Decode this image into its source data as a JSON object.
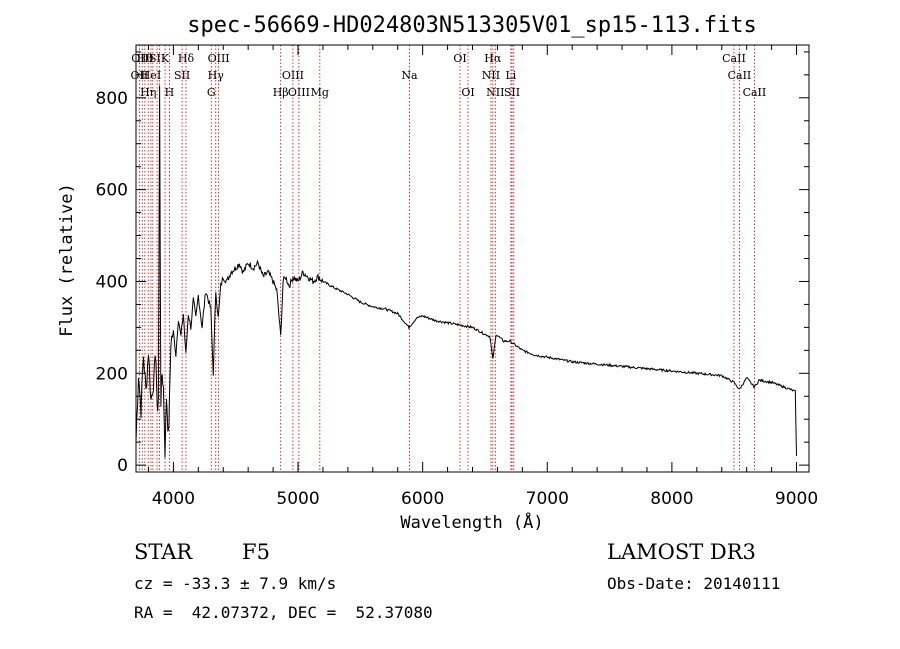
{
  "chart_data": {
    "type": "line",
    "title": "spec-56669-HD024803N513305V01_sp15-113.fits",
    "xlabel": "Wavelength (Å)",
    "ylabel": "Flux (relative)",
    "xlim": [
      3700,
      9100
    ],
    "ylim": [
      -15,
      915
    ],
    "xticks": [
      4000,
      5000,
      6000,
      7000,
      8000,
      9000
    ],
    "yticks": [
      0,
      200,
      400,
      600,
      800
    ],
    "grid": false,
    "series": [
      {
        "name": "flux",
        "x": [
          3700,
          3720,
          3740,
          3760,
          3780,
          3800,
          3820,
          3840,
          3860,
          3870,
          3880,
          3889,
          3900,
          3910,
          3920,
          3933,
          3945,
          3960,
          3968,
          3980,
          4000,
          4020,
          4040,
          4060,
          4080,
          4100,
          4120,
          4140,
          4160,
          4180,
          4200,
          4230,
          4260,
          4300,
          4320,
          4340,
          4360,
          4380,
          4400,
          4430,
          4460,
          4500,
          4530,
          4560,
          4600,
          4640,
          4680,
          4720,
          4760,
          4800,
          4830,
          4861,
          4880,
          4900,
          4930,
          4960,
          5000,
          5040,
          5080,
          5120,
          5160,
          5200,
          5300,
          5400,
          5500,
          5600,
          5700,
          5800,
          5890,
          5950,
          6000,
          6100,
          6200,
          6300,
          6400,
          6500,
          6540,
          6563,
          6590,
          6650,
          6700,
          6800,
          6900,
          7000,
          7200,
          7400,
          7600,
          7800,
          8000,
          8200,
          8400,
          8498,
          8542,
          8600,
          8662,
          8700,
          8800,
          8900,
          8950,
          8990,
          9000
        ],
        "y": [
          50,
          200,
          120,
          240,
          160,
          250,
          140,
          180,
          240,
          110,
          150,
          820,
          140,
          200,
          170,
          30,
          150,
          60,
          130,
          270,
          290,
          240,
          320,
          280,
          330,
          240,
          330,
          300,
          360,
          320,
          370,
          300,
          380,
          340,
          200,
          380,
          320,
          390,
          410,
          400,
          420,
          430,
          440,
          420,
          440,
          430,
          440,
          410,
          420,
          400,
          380,
          280,
          400,
          410,
          390,
          410,
          400,
          420,
          410,
          400,
          410,
          400,
          385,
          372,
          355,
          345,
          340,
          330,
          300,
          320,
          325,
          315,
          310,
          305,
          300,
          285,
          280,
          230,
          285,
          270,
          270,
          250,
          240,
          235,
          225,
          220,
          215,
          210,
          205,
          200,
          195,
          180,
          165,
          190,
          170,
          185,
          180,
          170,
          165,
          160,
          20
        ]
      }
    ],
    "lines": [
      {
        "x": 3727,
        "labels": [
          "OII"
        ]
      },
      {
        "x": 3750,
        "labels": [
          "OIII"
        ]
      },
      {
        "x": 3771,
        "labels": [
          "Hθ"
        ]
      },
      {
        "x": 3798,
        "labels": [
          "Hη"
        ]
      },
      {
        "x": 3820,
        "labels": [
          "HeI"
        ]
      },
      {
        "x": 3835,
        "labels": [
          "Hη"
        ]
      },
      {
        "x": 3869,
        "labels": [
          "SII"
        ]
      },
      {
        "x": 3889,
        "labels": [
          "Hε"
        ]
      },
      {
        "x": 3933,
        "labels": [
          "K"
        ]
      },
      {
        "x": 3968,
        "labels": [
          "H"
        ]
      },
      {
        "x": 4070,
        "labels": [
          "SII"
        ]
      },
      {
        "x": 4101,
        "labels": [
          "Hδ"
        ]
      },
      {
        "x": 4304,
        "labels": [
          "G"
        ]
      },
      {
        "x": 4340,
        "labels": [
          "Hγ"
        ]
      },
      {
        "x": 4363,
        "labels": [
          "OIII"
        ]
      },
      {
        "x": 4861,
        "labels": [
          "Hβ"
        ]
      },
      {
        "x": 4959,
        "labels": [
          "OIII"
        ]
      },
      {
        "x": 5007,
        "labels": [
          "OIII"
        ]
      },
      {
        "x": 5175,
        "labels": [
          "Mg"
        ]
      },
      {
        "x": 5894,
        "labels": [
          "Na"
        ]
      },
      {
        "x": 6300,
        "labels": [
          "OI"
        ]
      },
      {
        "x": 6364,
        "labels": [
          "OI"
        ]
      },
      {
        "x": 6548,
        "labels": [
          "NII"
        ]
      },
      {
        "x": 6563,
        "labels": [
          "Hα"
        ]
      },
      {
        "x": 6583,
        "labels": [
          "NII"
        ]
      },
      {
        "x": 6708,
        "labels": [
          "Li"
        ]
      },
      {
        "x": 6717,
        "labels": [
          "SII"
        ]
      },
      {
        "x": 6731,
        "labels": [
          "SII"
        ]
      },
      {
        "x": 8498,
        "labels": [
          "CaII"
        ]
      },
      {
        "x": 8542,
        "labels": [
          "CaII"
        ]
      },
      {
        "x": 8662,
        "labels": [
          "CaII"
        ]
      }
    ],
    "line_label_rows": [
      [
        "Hθ",
        "K",
        "Hδ",
        "OIII",
        "OIII",
        "OI",
        "Hα",
        "SII",
        "CaII"
      ],
      [
        "OII",
        "HeI",
        "SII",
        "Hγ",
        "OIII",
        "Na",
        "NII",
        "Li",
        "CaII"
      ],
      [
        "OIII",
        "Hη",
        "H",
        "G",
        "Hβ",
        "Mg",
        "OI",
        "NII",
        "SII",
        "CaII"
      ]
    ]
  },
  "info": {
    "object_class": "STAR",
    "subclass": "F5",
    "survey": "LAMOST DR3",
    "redshift": "cz = -33.3 ± 7.9 km/s",
    "obs_date": "Obs-Date: 20140111",
    "coords": "RA =  42.07372, DEC =  52.37080"
  },
  "colors": {
    "spectrum": "#000000",
    "lines": "#cc0000",
    "axes": "#000000"
  }
}
